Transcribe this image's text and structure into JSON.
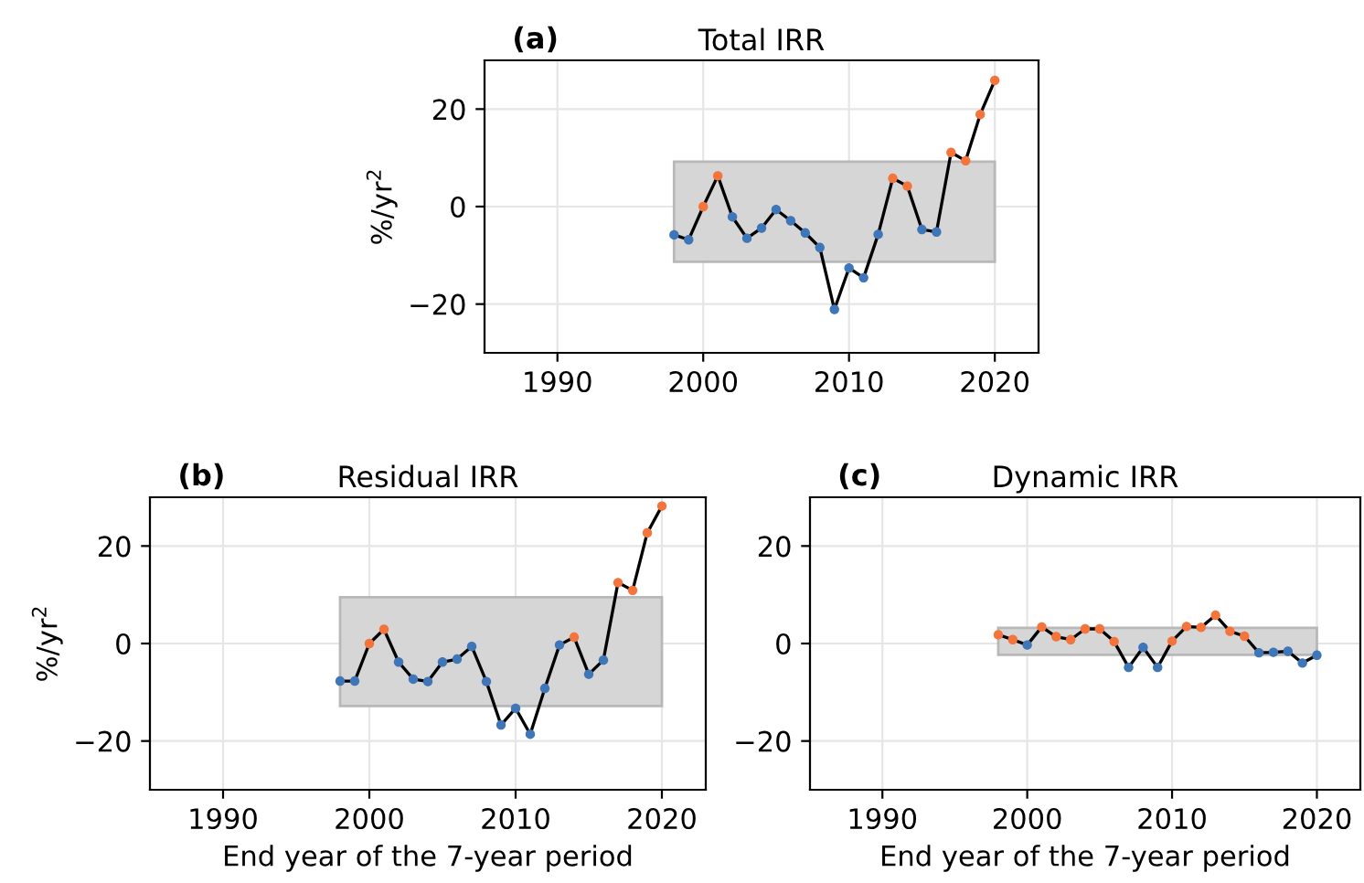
{
  "chart_data": [
    {
      "type": "line",
      "title": "Total IRR",
      "annotations": [
        "(a)"
      ],
      "ylabel": "%/yr$^{2}$",
      "x": [
        1998,
        1999,
        2000,
        2001,
        2002,
        2003,
        2004,
        2005,
        2006,
        2007,
        2008,
        2009,
        2010,
        2011,
        2012,
        2013,
        2014,
        2015,
        2016,
        2017,
        2018,
        2019,
        2020
      ],
      "series": [
        {
          "color": "#000000",
          "values": [
            -5.8,
            -6.8,
            0,
            6.3,
            -2.1,
            -6.5,
            -4.4,
            -0.6,
            -2.9,
            -5.4,
            -8.4,
            -21.1,
            -12.6,
            -14.6,
            -5.7,
            5.8,
            4.2,
            -4.7,
            -5.2,
            11.1,
            9.4,
            18.9,
            25.9
          ],
          "colors": [
            "#3f76b8",
            "#3f76b8",
            "#f4743b",
            "#f4743b",
            "#3f76b8",
            "#3f76b8",
            "#3f76b8",
            "#3f76b8",
            "#3f76b8",
            "#3f76b8",
            "#3f76b8",
            "#3f76b8",
            "#3f76b8",
            "#3f76b8",
            "#3f76b8",
            "#f4743b",
            "#f4743b",
            "#3f76b8",
            "#3f76b8",
            "#f4743b",
            "#f4743b",
            "#f4743b",
            "#f4743b"
          ]
        }
      ],
      "bands": [
        {
          "axis": "y",
          "from": -11.3,
          "to": 9.2,
          "color": "#d6d6d6"
        }
      ],
      "xlim": [
        1985,
        2023
      ],
      "xticks": [
        1990,
        2000,
        2010,
        2020
      ],
      "ylim": [
        -30,
        30
      ],
      "yticks": [
        -20,
        0,
        20
      ],
      "grid": true,
      "marker": "circle",
      "line_style": "solid"
    },
    {
      "type": "line",
      "title": "Residual IRR",
      "annotations": [
        "(b)"
      ],
      "ylabel": "%/yr$^{2}$",
      "xlabel": "End year of the 7-year period",
      "x": [
        1998,
        1999,
        2000,
        2001,
        2002,
        2003,
        2004,
        2005,
        2006,
        2007,
        2008,
        2009,
        2010,
        2011,
        2012,
        2013,
        2014,
        2015,
        2016,
        2017,
        2018,
        2019,
        2020
      ],
      "series": [
        {
          "color": "#000000",
          "values": [
            -7.7,
            -7.7,
            0,
            2.9,
            -3.8,
            -7.3,
            -7.8,
            -3.8,
            -3.2,
            -0.6,
            -7.8,
            -16.7,
            -13.3,
            -18.6,
            -9.2,
            -0.3,
            1.3,
            -6.3,
            -3.4,
            12.5,
            10.9,
            22.7,
            28.2
          ],
          "colors": [
            "#3f76b8",
            "#3f76b8",
            "#f4743b",
            "#f4743b",
            "#3f76b8",
            "#3f76b8",
            "#3f76b8",
            "#3f76b8",
            "#3f76b8",
            "#3f76b8",
            "#3f76b8",
            "#3f76b8",
            "#3f76b8",
            "#3f76b8",
            "#3f76b8",
            "#3f76b8",
            "#f4743b",
            "#3f76b8",
            "#3f76b8",
            "#f4743b",
            "#f4743b",
            "#f4743b",
            "#f4743b"
          ]
        }
      ],
      "bands": [
        {
          "axis": "y",
          "from": -12.8,
          "to": 9.5,
          "color": "#d6d6d6"
        }
      ],
      "xlim": [
        1985,
        2023
      ],
      "xticks": [
        1990,
        2000,
        2010,
        2020
      ],
      "ylim": [
        -30,
        30
      ],
      "yticks": [
        -20,
        0,
        20
      ],
      "grid": true,
      "marker": "circle",
      "line_style": "solid"
    },
    {
      "type": "line",
      "title": "Dynamic IRR",
      "annotations": [
        "(c)"
      ],
      "xlabel": "End year of the 7-year period",
      "x": [
        1998,
        1999,
        2000,
        2001,
        2002,
        2003,
        2004,
        2005,
        2006,
        2007,
        2008,
        2009,
        2010,
        2011,
        2012,
        2013,
        2014,
        2015,
        2016,
        2017,
        2018,
        2019,
        2020
      ],
      "series": [
        {
          "color": "#000000",
          "values": [
            1.8,
            0.8,
            -0.3,
            3.4,
            1.4,
            0.8,
            3.0,
            3.0,
            0.4,
            -4.9,
            -0.8,
            -4.9,
            0.5,
            3.5,
            3.3,
            5.8,
            2.5,
            1.5,
            -1.9,
            -1.8,
            -1.6,
            -4.0,
            -2.4
          ],
          "colors": [
            "#f4743b",
            "#f4743b",
            "#3f76b8",
            "#f4743b",
            "#f4743b",
            "#f4743b",
            "#f4743b",
            "#f4743b",
            "#f4743b",
            "#3f76b8",
            "#3f76b8",
            "#3f76b8",
            "#f4743b",
            "#f4743b",
            "#f4743b",
            "#f4743b",
            "#f4743b",
            "#f4743b",
            "#3f76b8",
            "#3f76b8",
            "#3f76b8",
            "#3f76b8",
            "#3f76b8"
          ]
        }
      ],
      "bands": [
        {
          "axis": "y",
          "from": -2.3,
          "to": 3.2,
          "color": "#d6d6d6"
        }
      ],
      "xlim": [
        1985,
        2023
      ],
      "xticks": [
        1990,
        2000,
        2010,
        2020
      ],
      "ylim": [
        -30,
        30
      ],
      "yticks": [
        -20,
        0,
        20
      ],
      "grid": true,
      "marker": "circle",
      "line_style": "solid"
    }
  ]
}
